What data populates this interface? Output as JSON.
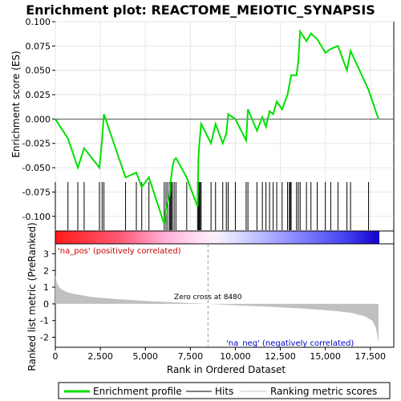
{
  "chart_data": {
    "type": "line",
    "title": "Enrichment plot: REACTOME_MEIOTIC_SYNAPSIS",
    "top_panel": {
      "ylabel": "Enrichment score (ES)",
      "ylim": [
        -0.115,
        0.1
      ],
      "yticks": [
        0.1,
        0.075,
        0.05,
        0.025,
        0.0,
        -0.025,
        -0.05,
        -0.075,
        -0.1
      ],
      "ytick_labels": [
        "0.100",
        "0.075",
        "0.050",
        "0.025",
        "0.000",
        "-0.025",
        "-0.050",
        "-0.075",
        "-0.100"
      ],
      "series_name": "Enrichment profile",
      "line_color": "#00e000",
      "hits": [
        0,
        700,
        1250,
        1600,
        2450,
        2600,
        2700,
        3900,
        4500,
        4800,
        5200,
        6050,
        6150,
        6250,
        6350,
        6400,
        6450,
        6500,
        6600,
        6700,
        7300,
        7900,
        7950,
        8000,
        8050,
        8100,
        8650,
        8900,
        9300,
        9500,
        9600,
        10000,
        10600,
        10700,
        11200,
        11500,
        11700,
        11900,
        12100,
        12300,
        12600,
        12900,
        13000,
        13050,
        13100,
        13400,
        13500,
        13600,
        13950,
        14200,
        14550,
        15000,
        15300,
        15700,
        16200,
        16400,
        17400
      ],
      "es_profile": [
        [
          0,
          0.0
        ],
        [
          700,
          -0.02
        ],
        [
          1250,
          -0.05
        ],
        [
          1600,
          -0.03
        ],
        [
          2450,
          -0.05
        ],
        [
          2600,
          -0.02
        ],
        [
          2700,
          0.005
        ],
        [
          3900,
          -0.06
        ],
        [
          4500,
          -0.055
        ],
        [
          4800,
          -0.07
        ],
        [
          5200,
          -0.06
        ],
        [
          6050,
          -0.108
        ],
        [
          6150,
          -0.092
        ],
        [
          6250,
          -0.085
        ],
        [
          6350,
          -0.078
        ],
        [
          6400,
          -0.065
        ],
        [
          6450,
          -0.058
        ],
        [
          6500,
          -0.05
        ],
        [
          6600,
          -0.042
        ],
        [
          6700,
          -0.04
        ],
        [
          7300,
          -0.06
        ],
        [
          7900,
          -0.09
        ],
        [
          7950,
          -0.04
        ],
        [
          8000,
          -0.025
        ],
        [
          8050,
          -0.015
        ],
        [
          8100,
          -0.005
        ],
        [
          8650,
          -0.025
        ],
        [
          8900,
          -0.005
        ],
        [
          9300,
          -0.025
        ],
        [
          9500,
          -0.015
        ],
        [
          9600,
          0.005
        ],
        [
          10000,
          0.0
        ],
        [
          10600,
          -0.022
        ],
        [
          10700,
          0.01
        ],
        [
          11200,
          -0.012
        ],
        [
          11500,
          0.002
        ],
        [
          11700,
          -0.008
        ],
        [
          11900,
          0.008
        ],
        [
          12100,
          0.005
        ],
        [
          12300,
          0.018
        ],
        [
          12600,
          0.01
        ],
        [
          12900,
          0.025
        ],
        [
          13000,
          0.035
        ],
        [
          13050,
          0.04
        ],
        [
          13100,
          0.045
        ],
        [
          13400,
          0.045
        ],
        [
          13500,
          0.06
        ],
        [
          13600,
          0.09
        ],
        [
          13950,
          0.08
        ],
        [
          14200,
          0.088
        ],
        [
          14550,
          0.082
        ],
        [
          15000,
          0.068
        ],
        [
          15300,
          0.072
        ],
        [
          15700,
          0.075
        ],
        [
          16200,
          0.05
        ],
        [
          16400,
          0.07
        ],
        [
          17400,
          0.03
        ],
        [
          17950,
          0.0
        ]
      ]
    },
    "heatmap": {
      "label_pos": "'na_pos' (positively correlated)",
      "label_neg": "'na_neg' (negatively correlated)",
      "color_pos": "#ff0000",
      "color_neg": "#0000ff"
    },
    "bottom_panel": {
      "ylabel": "Ranked list metric (PreRanked)",
      "xlabel": "Rank in Ordered Dataset",
      "ylim": [
        -2.6,
        3.6
      ],
      "yticks": [
        3,
        2,
        1,
        0,
        -1,
        -2
      ],
      "ytick_labels": [
        "3",
        "2",
        "1",
        "0",
        "-1",
        "-2"
      ],
      "xlim": [
        0,
        18000
      ],
      "xticks": [
        0,
        2500,
        5000,
        7500,
        10000,
        12500,
        15000,
        17500
      ],
      "xtick_labels": [
        "0",
        "2,500",
        "5,000",
        "7,500",
        "10,000",
        "12,500",
        "15,000",
        "17,500"
      ],
      "zero_cross_rank": 8480,
      "zero_cross_label": "Zero cross at 8480",
      "metric_curve": [
        [
          0,
          1.7
        ],
        [
          100,
          1.2
        ],
        [
          300,
          0.9
        ],
        [
          600,
          0.72
        ],
        [
          1000,
          0.6
        ],
        [
          2000,
          0.42
        ],
        [
          3000,
          0.32
        ],
        [
          4000,
          0.25
        ],
        [
          5000,
          0.18
        ],
        [
          6000,
          0.12
        ],
        [
          7000,
          0.07
        ],
        [
          8480,
          0.0
        ],
        [
          10000,
          -0.08
        ],
        [
          12000,
          -0.18
        ],
        [
          14000,
          -0.3
        ],
        [
          15500,
          -0.42
        ],
        [
          16500,
          -0.55
        ],
        [
          17200,
          -0.75
        ],
        [
          17600,
          -1.0
        ],
        [
          17800,
          -1.4
        ],
        [
          17900,
          -2.0
        ],
        [
          17950,
          -2.4
        ]
      ],
      "fill_color": "#c0c0c0"
    },
    "legend": {
      "items": [
        {
          "label": "Enrichment profile",
          "color": "#00e000"
        },
        {
          "label": "Hits",
          "color": "#000000"
        },
        {
          "label": "Ranking metric scores",
          "color": "#c0c0c0"
        }
      ]
    }
  }
}
